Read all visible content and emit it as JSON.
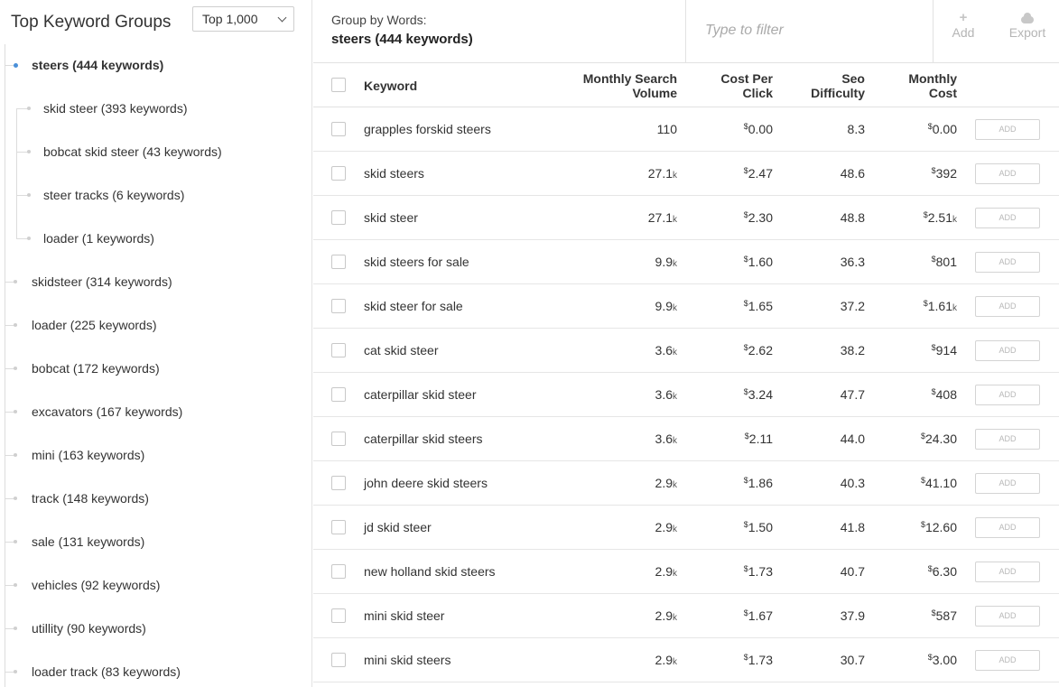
{
  "sidebar": {
    "title": "Top Keyword Groups",
    "select_value": "Top 1,000",
    "groups": [
      {
        "label": "steers (444 keywords)",
        "level": 0,
        "active": true
      },
      {
        "label": "skid steer (393 keywords)",
        "level": 1
      },
      {
        "label": "bobcat skid steer (43 keywords)",
        "level": 1
      },
      {
        "label": "steer tracks (6 keywords)",
        "level": 1
      },
      {
        "label": "loader (1 keywords)",
        "level": 1
      },
      {
        "label": "skidsteer (314 keywords)",
        "level": 0
      },
      {
        "label": "loader (225 keywords)",
        "level": 0
      },
      {
        "label": "bobcat (172 keywords)",
        "level": 0
      },
      {
        "label": "excavators (167 keywords)",
        "level": 0
      },
      {
        "label": "mini (163 keywords)",
        "level": 0
      },
      {
        "label": "track (148 keywords)",
        "level": 0
      },
      {
        "label": "sale (131 keywords)",
        "level": 0
      },
      {
        "label": "vehicles (92 keywords)",
        "level": 0
      },
      {
        "label": "utillity (90 keywords)",
        "level": 0
      },
      {
        "label": "loader track (83 keywords)",
        "level": 0
      }
    ]
  },
  "header": {
    "group_by_label": "Group by Words:",
    "group_name": "steers (444 keywords)",
    "filter_placeholder": "Type to filter",
    "add_label": "Add",
    "add_icon": "plus-icon",
    "export_label": "Export",
    "export_icon": "cloud-icon"
  },
  "table": {
    "columns": {
      "keyword": "Keyword",
      "volume_1": "Monthly Search",
      "volume_2": "Volume",
      "cpc_1": "Cost Per",
      "cpc_2": "Click",
      "seo_1": "Seo",
      "seo_2": "Difficulty",
      "mc_1": "Monthly",
      "mc_2": "Cost"
    },
    "add_button_label": "ADD",
    "rows": [
      {
        "keyword": "grapples forskid steers",
        "volume": "110",
        "volume_unit": "",
        "cpc": "0.00",
        "seo": "8.3",
        "mc": "0.00",
        "mc_unit": ""
      },
      {
        "keyword": "skid steers",
        "volume": "27.1",
        "volume_unit": "k",
        "cpc": "2.47",
        "seo": "48.6",
        "mc": "392",
        "mc_unit": ""
      },
      {
        "keyword": "skid steer",
        "volume": "27.1",
        "volume_unit": "k",
        "cpc": "2.30",
        "seo": "48.8",
        "mc": "2.51",
        "mc_unit": "k"
      },
      {
        "keyword": "skid steers for sale",
        "volume": "9.9",
        "volume_unit": "k",
        "cpc": "1.60",
        "seo": "36.3",
        "mc": "801",
        "mc_unit": ""
      },
      {
        "keyword": "skid steer for sale",
        "volume": "9.9",
        "volume_unit": "k",
        "cpc": "1.65",
        "seo": "37.2",
        "mc": "1.61",
        "mc_unit": "k"
      },
      {
        "keyword": "cat skid steer",
        "volume": "3.6",
        "volume_unit": "k",
        "cpc": "2.62",
        "seo": "38.2",
        "mc": "914",
        "mc_unit": ""
      },
      {
        "keyword": "caterpillar skid steer",
        "volume": "3.6",
        "volume_unit": "k",
        "cpc": "3.24",
        "seo": "47.7",
        "mc": "408",
        "mc_unit": ""
      },
      {
        "keyword": "caterpillar skid steers",
        "volume": "3.6",
        "volume_unit": "k",
        "cpc": "2.11",
        "seo": "44.0",
        "mc": "24.30",
        "mc_unit": ""
      },
      {
        "keyword": "john deere skid steers",
        "volume": "2.9",
        "volume_unit": "k",
        "cpc": "1.86",
        "seo": "40.3",
        "mc": "41.10",
        "mc_unit": ""
      },
      {
        "keyword": "jd skid steer",
        "volume": "2.9",
        "volume_unit": "k",
        "cpc": "1.50",
        "seo": "41.8",
        "mc": "12.60",
        "mc_unit": ""
      },
      {
        "keyword": "new holland skid steers",
        "volume": "2.9",
        "volume_unit": "k",
        "cpc": "1.73",
        "seo": "40.7",
        "mc": "6.30",
        "mc_unit": ""
      },
      {
        "keyword": "mini skid steer",
        "volume": "2.9",
        "volume_unit": "k",
        "cpc": "1.67",
        "seo": "37.9",
        "mc": "587",
        "mc_unit": ""
      },
      {
        "keyword": "mini skid steers",
        "volume": "2.9",
        "volume_unit": "k",
        "cpc": "1.73",
        "seo": "30.7",
        "mc": "3.00",
        "mc_unit": ""
      }
    ]
  }
}
